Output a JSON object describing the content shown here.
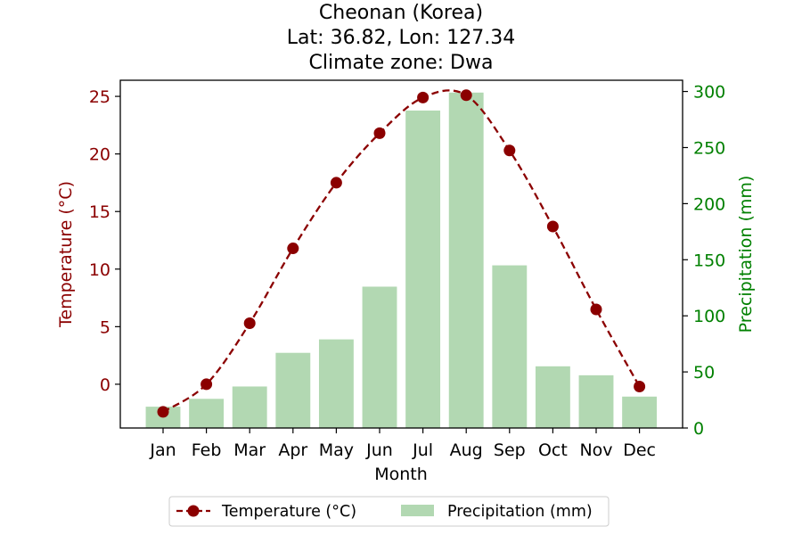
{
  "chart_data": {
    "type": "bar+line",
    "title_lines": [
      "Cheonan (Korea)",
      "Lat: 36.82, Lon: 127.34",
      "Climate zone: Dwa"
    ],
    "xlabel": "Month",
    "ylabel_left": "Temperature (°C)",
    "ylabel_right": "Precipitation (mm)",
    "categories": [
      "Jan",
      "Feb",
      "Mar",
      "Apr",
      "May",
      "Jun",
      "Jul",
      "Aug",
      "Sep",
      "Oct",
      "Nov",
      "Dec"
    ],
    "temperature_ylim": [
      -3.8,
      26.4
    ],
    "temperature_ticks": [
      "0",
      "5",
      "10",
      "15",
      "20",
      "25"
    ],
    "precip_ylim": [
      0,
      310
    ],
    "precip_ticks": [
      "0",
      "50",
      "100",
      "150",
      "200",
      "250",
      "300"
    ],
    "series": [
      {
        "name": "Temperature (°C)",
        "axis": "left",
        "kind": "line",
        "values": [
          -2.4,
          0.0,
          5.3,
          11.8,
          17.5,
          21.8,
          24.9,
          25.1,
          20.3,
          13.7,
          6.5,
          -0.2
        ]
      },
      {
        "name": "Precipitation (mm)",
        "axis": "right",
        "kind": "bar",
        "values": [
          19,
          26,
          37,
          67,
          79,
          126,
          283,
          299,
          145,
          55,
          47,
          28
        ]
      }
    ],
    "legend_position": "bottom-center",
    "grid": false,
    "colors": {
      "temperature": "#8b0000",
      "precipitation": "#b2d8b2",
      "left_axis": "#8b0000",
      "right_axis": "#008000"
    }
  }
}
